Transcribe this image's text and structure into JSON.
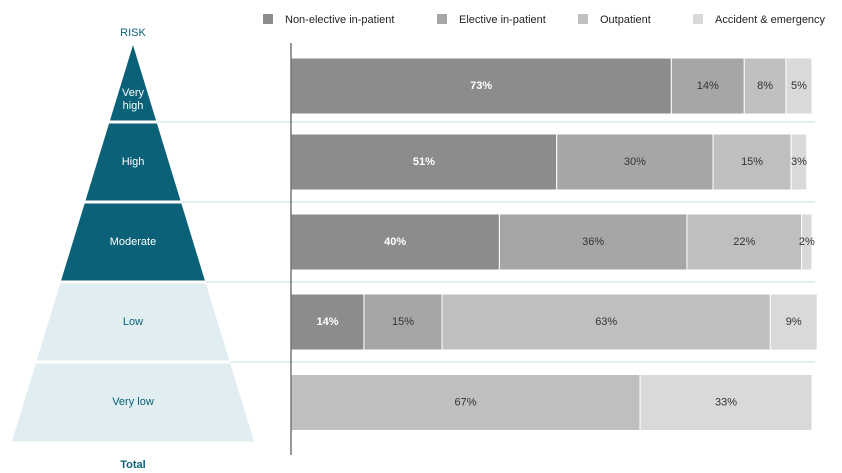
{
  "chart_data": {
    "type": "stacked_bar_pyramid",
    "pyramid_title": "RISK",
    "footer": "Total",
    "categories": [
      "Very high",
      "High",
      "Moderate",
      "Low",
      "Very low"
    ],
    "pyramid_colors": [
      "#0b6177",
      "#0b6177",
      "#0b6177",
      "#e1eef1",
      "#e1eef1"
    ],
    "pyramid_text_colors": [
      "#ffffff",
      "#ffffff",
      "#ffffff",
      "#0b6177",
      "#0b6177"
    ],
    "xlim": [
      0,
      100
    ],
    "series": [
      {
        "name": "Non-elective in-patient",
        "color": "#8c8c8c",
        "values": [
          73,
          51,
          40,
          14,
          null
        ],
        "value_labels": [
          "73%",
          "51%",
          "40%",
          "14%",
          null
        ]
      },
      {
        "name": "Elective in-patient",
        "color": "#a6a6a6",
        "values": [
          14,
          30,
          36,
          15,
          null
        ],
        "value_labels": [
          "14%",
          "30%",
          "36%",
          "15%",
          null
        ]
      },
      {
        "name": "Outpatient",
        "color": "#bfbfbf",
        "values": [
          8,
          15,
          22,
          63,
          67
        ],
        "value_labels": [
          "8%",
          "15%",
          "22%",
          "63%",
          "67%"
        ]
      },
      {
        "name": "Accident & emergency",
        "color": "#d9d9d9",
        "values": [
          5,
          3,
          2,
          9,
          33
        ],
        "value_labels": [
          "5%",
          "3%",
          "2%",
          "9%",
          "33%"
        ]
      }
    ]
  }
}
